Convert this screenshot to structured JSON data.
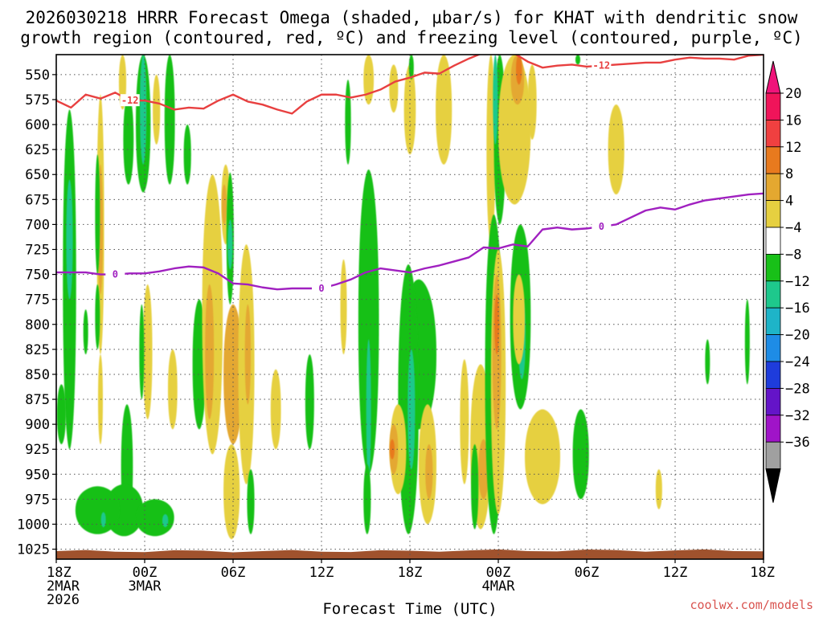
{
  "chart_data": {
    "type": "heatmap",
    "title_line1": "2026030218 HRRR Forecast Omega (shaded, µbar/s) for KHAT with dendritic snow",
    "title_line2": "growth region (contoured, red, ºC) and freezing level (contoured, purple, ºC)",
    "xlabel": "Forecast Time (UTC)",
    "credit": "coolwx.com/models",
    "x_range_hours": [
      0,
      48
    ],
    "y_range_mb": [
      530,
      1035
    ],
    "y_ticks": [
      550,
      575,
      600,
      625,
      650,
      675,
      700,
      725,
      750,
      775,
      800,
      825,
      850,
      875,
      900,
      925,
      950,
      975,
      1000,
      1025
    ],
    "x_ticks": [
      {
        "h": 0,
        "lines": [
          "18Z",
          "2MAR",
          "2026"
        ]
      },
      {
        "h": 6,
        "lines": [
          "00Z",
          "3MAR"
        ]
      },
      {
        "h": 12,
        "lines": [
          "06Z"
        ]
      },
      {
        "h": 18,
        "lines": [
          "12Z"
        ]
      },
      {
        "h": 24,
        "lines": [
          "18Z"
        ]
      },
      {
        "h": 30,
        "lines": [
          "00Z",
          "4MAR"
        ]
      },
      {
        "h": 36,
        "lines": [
          "06Z"
        ]
      },
      {
        "h": 42,
        "lines": [
          "12Z"
        ]
      },
      {
        "h": 48,
        "lines": [
          "18Z"
        ]
      }
    ],
    "colorbar": {
      "labels": [
        "20",
        "16",
        "12",
        "8",
        "4",
        "−4",
        "−8",
        "−12",
        "−16",
        "−20",
        "−24",
        "−28",
        "−32",
        "−36"
      ],
      "colors": [
        "#f0145a",
        "#f04040",
        "#e87a1e",
        "#e4a830",
        "#e6d040",
        "#ffffff",
        "#18c018",
        "#1ec88c",
        "#1eb4c8",
        "#1e8ce6",
        "#1e3cdc",
        "#6414c8",
        "#a014c8",
        "#a0a0a0"
      ],
      "top_color": "#f0147a",
      "bottom_color": "#000000"
    },
    "snow_growth_contour": {
      "label": "-12",
      "color": "#e84040",
      "points": [
        [
          0,
          576
        ],
        [
          1,
          583
        ],
        [
          2,
          570
        ],
        [
          3,
          574
        ],
        [
          4,
          568
        ],
        [
          5,
          576
        ],
        [
          6,
          576
        ],
        [
          7,
          579
        ],
        [
          8,
          585
        ],
        [
          9,
          583
        ],
        [
          10,
          584
        ],
        [
          11,
          576
        ],
        [
          12,
          570
        ],
        [
          13,
          577
        ],
        [
          14,
          580
        ],
        [
          15,
          585
        ],
        [
          16,
          589
        ],
        [
          17,
          577
        ],
        [
          18,
          570
        ],
        [
          19,
          570
        ],
        [
          20,
          573
        ],
        [
          21,
          570
        ],
        [
          22,
          565
        ],
        [
          23,
          557
        ],
        [
          24,
          553
        ],
        [
          25,
          548
        ],
        [
          26,
          549
        ],
        [
          27,
          541
        ],
        [
          28,
          534
        ],
        [
          29,
          528
        ],
        [
          30,
          525
        ],
        [
          31,
          528
        ],
        [
          32,
          537
        ],
        [
          33,
          543
        ],
        [
          34,
          541
        ],
        [
          35,
          540
        ],
        [
          36,
          542
        ],
        [
          37,
          541
        ],
        [
          38,
          540
        ],
        [
          39,
          539
        ],
        [
          40,
          538
        ],
        [
          41,
          538
        ],
        [
          42,
          535
        ],
        [
          43,
          533
        ],
        [
          44,
          534
        ],
        [
          45,
          534
        ],
        [
          46,
          535
        ],
        [
          47,
          531
        ],
        [
          48,
          530
        ]
      ]
    },
    "freezing_level_contour": {
      "label": "0",
      "color": "#a020c0",
      "points": [
        [
          0,
          748
        ],
        [
          1,
          748
        ],
        [
          2,
          748
        ],
        [
          3,
          750
        ],
        [
          4,
          750
        ],
        [
          5,
          749
        ],
        [
          6,
          749
        ],
        [
          7,
          747
        ],
        [
          8,
          744
        ],
        [
          9,
          742
        ],
        [
          10,
          743
        ],
        [
          11,
          749
        ],
        [
          12,
          759
        ],
        [
          13,
          760
        ],
        [
          14,
          763
        ],
        [
          15,
          765
        ],
        [
          16,
          764
        ],
        [
          17,
          764
        ],
        [
          18,
          764
        ],
        [
          19,
          760
        ],
        [
          20,
          755
        ],
        [
          21,
          748
        ],
        [
          22,
          744
        ],
        [
          23,
          746
        ],
        [
          24,
          748
        ],
        [
          25,
          744
        ],
        [
          26,
          741
        ],
        [
          27,
          737
        ],
        [
          28,
          733
        ],
        [
          29,
          723
        ],
        [
          30,
          724
        ],
        [
          31,
          720
        ],
        [
          32,
          722
        ],
        [
          33,
          705
        ],
        [
          34,
          703
        ],
        [
          35,
          705
        ],
        [
          36,
          704
        ],
        [
          37,
          702
        ],
        [
          38,
          700
        ],
        [
          39,
          693
        ],
        [
          40,
          686
        ],
        [
          41,
          683
        ],
        [
          42,
          685
        ],
        [
          43,
          680
        ],
        [
          44,
          676
        ],
        [
          45,
          674
        ],
        [
          46,
          672
        ],
        [
          47,
          670
        ],
        [
          48,
          669
        ]
      ]
    },
    "omega_regions": [
      {
        "h": 0.9,
        "hw": 0.45,
        "p0": 585,
        "p1": 925,
        "v": -6
      },
      {
        "h": 0.9,
        "hw": 0.22,
        "p0": 655,
        "p1": 775,
        "v": -11
      },
      {
        "h": 0.35,
        "hw": 0.3,
        "p0": 860,
        "p1": 920,
        "v": -6
      },
      {
        "h": 3.0,
        "hw": 0.25,
        "p0": 570,
        "p1": 830,
        "v": 5
      },
      {
        "h": 3.0,
        "hw": 0.12,
        "p0": 640,
        "p1": 770,
        "v": 9
      },
      {
        "h": 2.8,
        "hw": 0.15,
        "p0": 630,
        "p1": 750,
        "v": -6
      },
      {
        "h": 3.0,
        "hw": 0.12,
        "p0": 830,
        "p1": 920,
        "v": 5
      },
      {
        "h": 2.8,
        "hw": 0.12,
        "p0": 760,
        "p1": 825,
        "v": -6
      },
      {
        "h": 2.0,
        "hw": 0.12,
        "p0": 785,
        "p1": 830,
        "v": -6
      },
      {
        "h": 4.5,
        "hw": 0.25,
        "p0": 530,
        "p1": 585,
        "v": 5
      },
      {
        "h": 4.9,
        "hw": 0.35,
        "p0": 570,
        "p1": 660,
        "v": -6
      },
      {
        "h": 5.9,
        "hw": 0.5,
        "p0": 530,
        "p1": 668,
        "v": -6
      },
      {
        "h": 5.9,
        "hw": 0.22,
        "p0": 530,
        "p1": 640,
        "v": -11
      },
      {
        "h": 7.7,
        "hw": 0.35,
        "p0": 530,
        "p1": 660,
        "v": -6
      },
      {
        "h": 8.9,
        "hw": 0.25,
        "p0": 600,
        "p1": 660,
        "v": -6
      },
      {
        "h": 6.8,
        "hw": 0.25,
        "p0": 550,
        "p1": 620,
        "v": 5
      },
      {
        "h": 6.2,
        "hw": 0.32,
        "p0": 760,
        "p1": 895,
        "v": 5
      },
      {
        "h": 7.9,
        "hw": 0.32,
        "p0": 825,
        "p1": 905,
        "v": 5
      },
      {
        "h": 5.8,
        "hw": 0.12,
        "p0": 780,
        "p1": 875,
        "v": -6
      },
      {
        "h": 9.7,
        "hw": 0.45,
        "p0": 775,
        "p1": 905,
        "v": -6
      },
      {
        "h": 4.8,
        "hw": 0.4,
        "p0": 880,
        "p1": 1005,
        "v": -6
      },
      {
        "h": 4.6,
        "hw": 1.3,
        "p0": 960,
        "p1": 1012,
        "v": -6
      },
      {
        "h": 2.8,
        "hw": 1.5,
        "p0": 962,
        "p1": 1010,
        "v": -6
      },
      {
        "h": 3.2,
        "hw": 0.12,
        "p0": 988,
        "p1": 1003,
        "v": -10
      },
      {
        "h": 6.7,
        "hw": 1.3,
        "p0": 975,
        "p1": 1012,
        "v": -6
      },
      {
        "h": 7.4,
        "hw": 0.2,
        "p0": 990,
        "p1": 1003,
        "v": -10
      },
      {
        "h": 10.6,
        "hw": 0.7,
        "p0": 650,
        "p1": 930,
        "v": 5
      },
      {
        "h": 10.4,
        "hw": 0.3,
        "p0": 760,
        "p1": 895,
        "v": 9
      },
      {
        "h": 11.5,
        "hw": 0.3,
        "p0": 640,
        "p1": 720,
        "v": 5
      },
      {
        "h": 11.4,
        "hw": 0.12,
        "p0": 660,
        "p1": 700,
        "v": 9
      },
      {
        "h": 12.0,
        "hw": 0.65,
        "p0": 780,
        "p1": 920,
        "v": 8
      },
      {
        "h": 11.8,
        "hw": 0.25,
        "p0": 648,
        "p1": 780,
        "v": -6
      },
      {
        "h": 11.8,
        "hw": 0.1,
        "p0": 695,
        "p1": 745,
        "v": -11
      },
      {
        "h": 12.9,
        "hw": 0.55,
        "p0": 720,
        "p1": 960,
        "v": 5
      },
      {
        "h": 13.0,
        "hw": 0.2,
        "p0": 780,
        "p1": 880,
        "v": 9
      },
      {
        "h": 11.9,
        "hw": 0.55,
        "p0": 920,
        "p1": 1015,
        "v": 5
      },
      {
        "h": 13.2,
        "hw": 0.25,
        "p0": 945,
        "p1": 1010,
        "v": -6
      },
      {
        "h": 14.9,
        "hw": 0.35,
        "p0": 845,
        "p1": 925,
        "v": 5
      },
      {
        "h": 17.2,
        "hw": 0.3,
        "p0": 830,
        "p1": 925,
        "v": -6
      },
      {
        "h": 19.5,
        "hw": 0.22,
        "p0": 735,
        "p1": 830,
        "v": 5
      },
      {
        "h": 19.8,
        "hw": 0.2,
        "p0": 555,
        "p1": 640,
        "v": -6
      },
      {
        "h": 21.2,
        "hw": 0.7,
        "p0": 645,
        "p1": 950,
        "v": -6
      },
      {
        "h": 21.2,
        "hw": 0.15,
        "p0": 815,
        "p1": 955,
        "v": -11
      },
      {
        "h": 21.1,
        "hw": 0.25,
        "p0": 940,
        "p1": 1010,
        "v": -6
      },
      {
        "h": 21.2,
        "hw": 0.35,
        "p0": 530,
        "p1": 580,
        "v": 5
      },
      {
        "h": 22.9,
        "hw": 0.3,
        "p0": 540,
        "p1": 588,
        "v": 5
      },
      {
        "h": 24.0,
        "hw": 0.4,
        "p0": 540,
        "p1": 630,
        "v": 5
      },
      {
        "h": 24.1,
        "hw": 0.12,
        "p0": 530,
        "p1": 555,
        "v": -6
      },
      {
        "h": 24.6,
        "hw": 1.2,
        "p0": 755,
        "p1": 905,
        "v": -6
      },
      {
        "h": 23.9,
        "hw": 0.7,
        "p0": 740,
        "p1": 1010,
        "v": -6
      },
      {
        "h": 24.1,
        "hw": 0.25,
        "p0": 825,
        "p1": 945,
        "v": -11
      },
      {
        "h": 23.2,
        "hw": 0.55,
        "p0": 880,
        "p1": 970,
        "v": 5
      },
      {
        "h": 22.9,
        "hw": 0.3,
        "p0": 900,
        "p1": 950,
        "v": 10
      },
      {
        "h": 22.8,
        "hw": 0.1,
        "p0": 915,
        "p1": 935,
        "v": 14
      },
      {
        "h": 25.2,
        "hw": 0.6,
        "p0": 880,
        "p1": 1000,
        "v": 5
      },
      {
        "h": 25.3,
        "hw": 0.25,
        "p0": 920,
        "p1": 975,
        "v": 9
      },
      {
        "h": 26.3,
        "hw": 0.55,
        "p0": 530,
        "p1": 640,
        "v": 5
      },
      {
        "h": 27.7,
        "hw": 0.3,
        "p0": 835,
        "p1": 960,
        "v": 5
      },
      {
        "h": 28.8,
        "hw": 0.7,
        "p0": 840,
        "p1": 1005,
        "v": 5
      },
      {
        "h": 29.0,
        "hw": 0.35,
        "p0": 915,
        "p1": 975,
        "v": 9
      },
      {
        "h": 28.4,
        "hw": 0.25,
        "p0": 920,
        "p1": 1005,
        "v": -6
      },
      {
        "h": 29.5,
        "hw": 0.3,
        "p0": 530,
        "p1": 720,
        "v": 5
      },
      {
        "h": 30.1,
        "hw": 0.4,
        "p0": 530,
        "p1": 700,
        "v": -6
      },
      {
        "h": 29.8,
        "hw": 0.1,
        "p0": 530,
        "p1": 620,
        "v": -11
      },
      {
        "h": 29.7,
        "hw": 0.6,
        "p0": 690,
        "p1": 1010,
        "v": -6
      },
      {
        "h": 30.0,
        "hw": 0.5,
        "p0": 725,
        "p1": 990,
        "v": 6
      },
      {
        "h": 29.9,
        "hw": 0.3,
        "p0": 750,
        "p1": 905,
        "v": 10
      },
      {
        "h": 29.9,
        "hw": 0.12,
        "p0": 770,
        "p1": 830,
        "v": 14
      },
      {
        "h": 31.1,
        "hw": 1.1,
        "p0": 530,
        "p1": 680,
        "v": 5
      },
      {
        "h": 31.3,
        "hw": 0.45,
        "p0": 530,
        "p1": 580,
        "v": 9
      },
      {
        "h": 31.4,
        "hw": 0.2,
        "p0": 530,
        "p1": 560,
        "v": 13
      },
      {
        "h": 31.5,
        "hw": 0.7,
        "p0": 700,
        "p1": 885,
        "v": -6
      },
      {
        "h": 31.6,
        "hw": 0.25,
        "p0": 770,
        "p1": 855,
        "v": -11
      },
      {
        "h": 31.4,
        "hw": 0.4,
        "p0": 750,
        "p1": 840,
        "v": 5
      },
      {
        "h": 32.3,
        "hw": 0.3,
        "p0": 540,
        "p1": 615,
        "v": 5
      },
      {
        "h": 33.0,
        "hw": 1.2,
        "p0": 885,
        "p1": 980,
        "v": 5
      },
      {
        "h": 35.6,
        "hw": 0.55,
        "p0": 885,
        "p1": 975,
        "v": -6
      },
      {
        "h": 35.4,
        "hw": 0.08,
        "p0": 530,
        "p1": 540,
        "v": -6
      },
      {
        "h": 38.0,
        "hw": 0.55,
        "p0": 580,
        "p1": 670,
        "v": 5
      },
      {
        "h": 40.9,
        "hw": 0.22,
        "p0": 945,
        "p1": 985,
        "v": 5
      },
      {
        "h": 44.2,
        "hw": 0.15,
        "p0": 815,
        "p1": 860,
        "v": -6
      },
      {
        "h": 46.9,
        "hw": 0.15,
        "p0": 775,
        "p1": 860,
        "v": -6
      }
    ]
  }
}
